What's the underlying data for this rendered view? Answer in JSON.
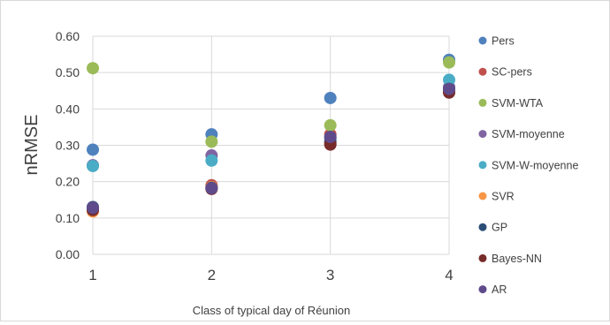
{
  "chart_data": {
    "type": "scatter",
    "title": "",
    "xlabel": "Class of typical day of Réunion",
    "ylabel": "nRMSE",
    "x_categories": [
      "1",
      "2",
      "3",
      "4"
    ],
    "ylim": [
      0,
      0.6
    ],
    "yticks": [
      "0.00",
      "0.10",
      "0.20",
      "0.30",
      "0.40",
      "0.50",
      "0.60"
    ],
    "grid": "vertical",
    "legend_position": "right",
    "series": [
      {
        "name": "Pers",
        "color": "#4f81bd",
        "values": [
          0.288,
          0.33,
          0.43,
          0.535
        ]
      },
      {
        "name": "SC-pers",
        "color": "#c0504d",
        "values": [
          0.125,
          0.19,
          0.33,
          0.45
        ]
      },
      {
        "name": "SVM-WTA",
        "color": "#9bbb59",
        "values": [
          0.512,
          0.31,
          0.355,
          0.528
        ]
      },
      {
        "name": "SVM-moyenne",
        "color": "#8064a2",
        "values": [
          0.245,
          0.272,
          0.32,
          0.46
        ]
      },
      {
        "name": "SVM-W-moyenne",
        "color": "#4bacc6",
        "values": [
          0.243,
          0.258,
          0.32,
          0.48
        ]
      },
      {
        "name": "SVR",
        "color": "#f79646",
        "values": [
          0.118,
          0.185,
          0.305,
          0.448
        ]
      },
      {
        "name": "GP",
        "color": "#2c4d75",
        "values": [
          0.13,
          0.183,
          0.31,
          0.455
        ]
      },
      {
        "name": "Bayes-NN",
        "color": "#772c2a",
        "values": [
          0.122,
          0.18,
          0.302,
          0.445
        ]
      },
      {
        "name": "AR",
        "color": "#5f4b8b",
        "values": [
          0.128,
          0.182,
          0.323,
          0.455
        ]
      }
    ]
  }
}
